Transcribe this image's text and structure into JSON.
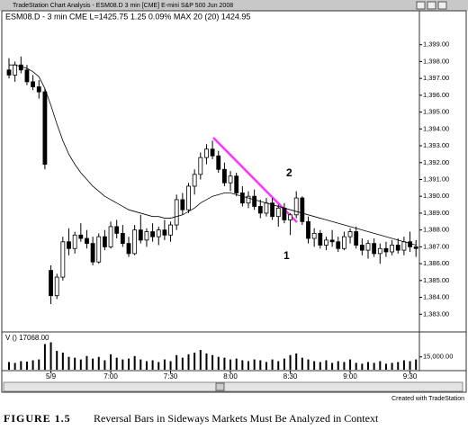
{
  "window_title": "TradeStation Chart Analysis - ESM08.D  3 min  [CME] E-mini S&P 500 Jun 2008",
  "chart_data": {
    "type": "candlestick",
    "header": "ESM08.D - 3 min  CME  L=1425.75  1.25  0.09%  MAX 20 (20)  1424.95",
    "categories": [
      null,
      null,
      null,
      null,
      null,
      null,
      null,
      "5/9",
      null,
      null,
      null,
      null,
      null,
      null,
      null,
      null,
      null,
      "7:00",
      null,
      null,
      null,
      null,
      null,
      null,
      null,
      null,
      null,
      "7:30",
      null,
      null,
      null,
      null,
      null,
      null,
      null,
      null,
      null,
      "8:00",
      null,
      null,
      null,
      null,
      null,
      null,
      null,
      null,
      null,
      "8:30",
      null,
      null,
      null,
      null,
      null,
      null,
      null,
      null,
      null,
      "9:00",
      null,
      null,
      null,
      null,
      null,
      null,
      null,
      null,
      null,
      "9:30",
      null
    ],
    "open": [
      1397.5,
      1397.2,
      1397.8,
      1397.5,
      1396.8,
      1396.5,
      1396.2,
      1385.6,
      1384.1,
      1385.2,
      1387.3,
      1386.9,
      1387.7,
      1387.5,
      1387.2,
      1386.1,
      1387.6,
      1387.0,
      1388.2,
      1387.8,
      1387.2,
      1386.6,
      1388.0,
      1387.4,
      1387.9,
      1387.6,
      1388.0,
      1387.7,
      1388.3,
      1389.8,
      1389.2,
      1390.6,
      1391.3,
      1392.3,
      1392.8,
      1392.4,
      1391.6,
      1390.8,
      1391.2,
      1390.2,
      1389.6,
      1390.0,
      1389.4,
      1389.0,
      1389.6,
      1388.8,
      1389.3,
      1388.6,
      1388.9,
      1389.9,
      1388.5,
      1387.5,
      1387.8,
      1387.1,
      1387.4,
      1387.3,
      1386.9,
      1387.6,
      1387.9,
      1387.1,
      1386.8,
      1387.2,
      1386.6,
      1386.9,
      1386.7,
      1387.1,
      1386.8,
      1387.3,
      1387.0
    ],
    "high": [
      1398.2,
      1398.0,
      1398.3,
      1397.8,
      1397.2,
      1396.9,
      1396.4,
      1385.9,
      1385.4,
      1387.6,
      1388.1,
      1387.9,
      1388.4,
      1388.0,
      1387.6,
      1387.8,
      1388.0,
      1388.5,
      1388.6,
      1388.3,
      1387.6,
      1388.3,
      1388.9,
      1388.1,
      1388.4,
      1388.2,
      1388.6,
      1388.5,
      1390.1,
      1390.2,
      1390.8,
      1391.6,
      1392.6,
      1393.1,
      1393.3,
      1392.7,
      1392.0,
      1391.5,
      1391.4,
      1390.6,
      1390.3,
      1390.4,
      1389.8,
      1389.9,
      1389.9,
      1389.5,
      1389.6,
      1389.0,
      1390.3,
      1390.0,
      1388.8,
      1388.1,
      1388.0,
      1387.6,
      1388.0,
      1387.6,
      1387.9,
      1388.1,
      1388.2,
      1387.5,
      1387.4,
      1387.5,
      1387.2,
      1387.3,
      1387.4,
      1387.5,
      1387.6,
      1387.9,
      1387.4
    ],
    "low": [
      1397.0,
      1396.8,
      1397.3,
      1396.6,
      1396.3,
      1395.8,
      1391.6,
      1383.6,
      1383.9,
      1385.0,
      1386.5,
      1386.6,
      1387.3,
      1386.9,
      1385.9,
      1386.0,
      1386.8,
      1386.9,
      1387.5,
      1387.0,
      1386.4,
      1386.5,
      1387.2,
      1387.0,
      1387.3,
      1387.1,
      1387.4,
      1387.3,
      1388.0,
      1388.9,
      1389.0,
      1390.1,
      1391.0,
      1391.9,
      1392.2,
      1391.4,
      1390.6,
      1390.3,
      1390.0,
      1389.4,
      1389.3,
      1389.2,
      1388.7,
      1388.8,
      1388.6,
      1388.2,
      1388.4,
      1387.7,
      1388.7,
      1388.3,
      1387.2,
      1387.0,
      1386.9,
      1386.8,
      1387.0,
      1386.7,
      1386.8,
      1387.2,
      1386.9,
      1386.5,
      1386.3,
      1386.4,
      1386.0,
      1386.4,
      1386.5,
      1386.6,
      1386.5,
      1386.7,
      1386.4
    ],
    "close": [
      1397.2,
      1397.8,
      1397.5,
      1396.8,
      1396.5,
      1396.2,
      1391.9,
      1384.1,
      1385.2,
      1387.3,
      1386.9,
      1387.7,
      1387.5,
      1387.2,
      1386.1,
      1387.6,
      1387.0,
      1388.2,
      1387.8,
      1387.2,
      1386.6,
      1388.0,
      1387.4,
      1387.9,
      1387.6,
      1388.0,
      1387.7,
      1388.3,
      1389.8,
      1389.2,
      1390.6,
      1391.3,
      1392.3,
      1392.8,
      1392.4,
      1391.6,
      1390.8,
      1391.2,
      1390.2,
      1389.6,
      1390.0,
      1389.4,
      1389.0,
      1389.6,
      1388.8,
      1389.3,
      1388.6,
      1388.9,
      1389.9,
      1388.5,
      1387.5,
      1387.8,
      1387.1,
      1387.4,
      1387.3,
      1386.9,
      1387.6,
      1387.9,
      1387.1,
      1386.8,
      1387.2,
      1386.6,
      1386.9,
      1386.7,
      1387.1,
      1386.8,
      1387.3,
      1387.0,
      1386.9
    ],
    "ma": {
      "color": "#000000",
      "values": [
        1397.8,
        1397.8,
        1397.7,
        1397.6,
        1397.4,
        1397.1,
        1396.4,
        1395.4,
        1394.3,
        1393.3,
        1392.5,
        1391.9,
        1391.4,
        1391.0,
        1390.6,
        1390.3,
        1390.0,
        1389.8,
        1389.6,
        1389.4,
        1389.2,
        1389.1,
        1389.0,
        1388.9,
        1388.8,
        1388.8,
        1388.7,
        1388.7,
        1388.8,
        1388.9,
        1389.1,
        1389.3,
        1389.6,
        1389.8,
        1390.0,
        1390.1,
        1390.2,
        1390.2,
        1390.1,
        1390.0,
        1389.9,
        1389.8,
        1389.7,
        1389.6,
        1389.5,
        1389.4,
        1389.3,
        1389.2,
        1389.1,
        1389.0,
        1388.9,
        1388.8,
        1388.7,
        1388.6,
        1388.5,
        1388.4,
        1388.3,
        1388.2,
        1388.1,
        1388.0,
        1387.9,
        1387.8,
        1387.7,
        1387.6,
        1387.5,
        1387.4,
        1387.3,
        1387.2,
        1387.1
      ]
    },
    "ylim": [
      1382,
      1400.8
    ],
    "yticks": [
      {
        "value": 1399,
        "label": "1,399.00"
      },
      {
        "value": 1398,
        "label": "1,398.00"
      },
      {
        "value": 1397,
        "label": "1,397.00"
      },
      {
        "value": 1396,
        "label": "1,396.00"
      },
      {
        "value": 1395,
        "label": "1,395.00"
      },
      {
        "value": 1394,
        "label": "1,394.00"
      },
      {
        "value": 1393,
        "label": "1,393.00"
      },
      {
        "value": 1392,
        "label": "1,392.00"
      },
      {
        "value": 1391,
        "label": "1,391.00"
      },
      {
        "value": 1390,
        "label": "1,390.00"
      },
      {
        "value": 1389,
        "label": "1,389.00"
      },
      {
        "value": 1388,
        "label": "1,388.00"
      },
      {
        "value": 1387,
        "label": "1,387.00"
      },
      {
        "value": 1386,
        "label": "1,386.00"
      },
      {
        "value": 1385,
        "label": "1,385.00"
      },
      {
        "value": 1384,
        "label": "1,384.00"
      },
      {
        "value": 1383,
        "label": "1,383.00"
      }
    ],
    "annotations": [
      "1",
      "2"
    ],
    "volume": {
      "label": "V ()  17068.00",
      "color": "#000000",
      "values": [
        9000,
        8000,
        10000,
        9500,
        11000,
        12000,
        30000,
        32000,
        22000,
        20000,
        15000,
        14000,
        12000,
        16000,
        13000,
        15000,
        11000,
        18000,
        14000,
        12000,
        13000,
        16000,
        12000,
        10000,
        11000,
        9000,
        12000,
        10000,
        17000,
        14000,
        18000,
        20000,
        23000,
        19000,
        17000,
        15000,
        14000,
        12000,
        13000,
        11000,
        10000,
        12000,
        11000,
        9000,
        12000,
        10000,
        13000,
        17068,
        19000,
        14000,
        12000,
        10000,
        9000,
        11000,
        8000,
        10000,
        9000,
        12000,
        8000,
        7000,
        9000,
        8000,
        10000,
        7000,
        8000,
        9000,
        11000,
        10000,
        12000
      ],
      "ylim": [
        0,
        42000
      ],
      "yticks": [
        {
          "value": 15000,
          "label": "15,000.00"
        }
      ]
    },
    "credit": "Created with TradeStation"
  },
  "caption": {
    "figure": "FIGURE 1.5",
    "text": "Reversal Bars in Sideways Markets Must Be Analyzed in Context"
  }
}
